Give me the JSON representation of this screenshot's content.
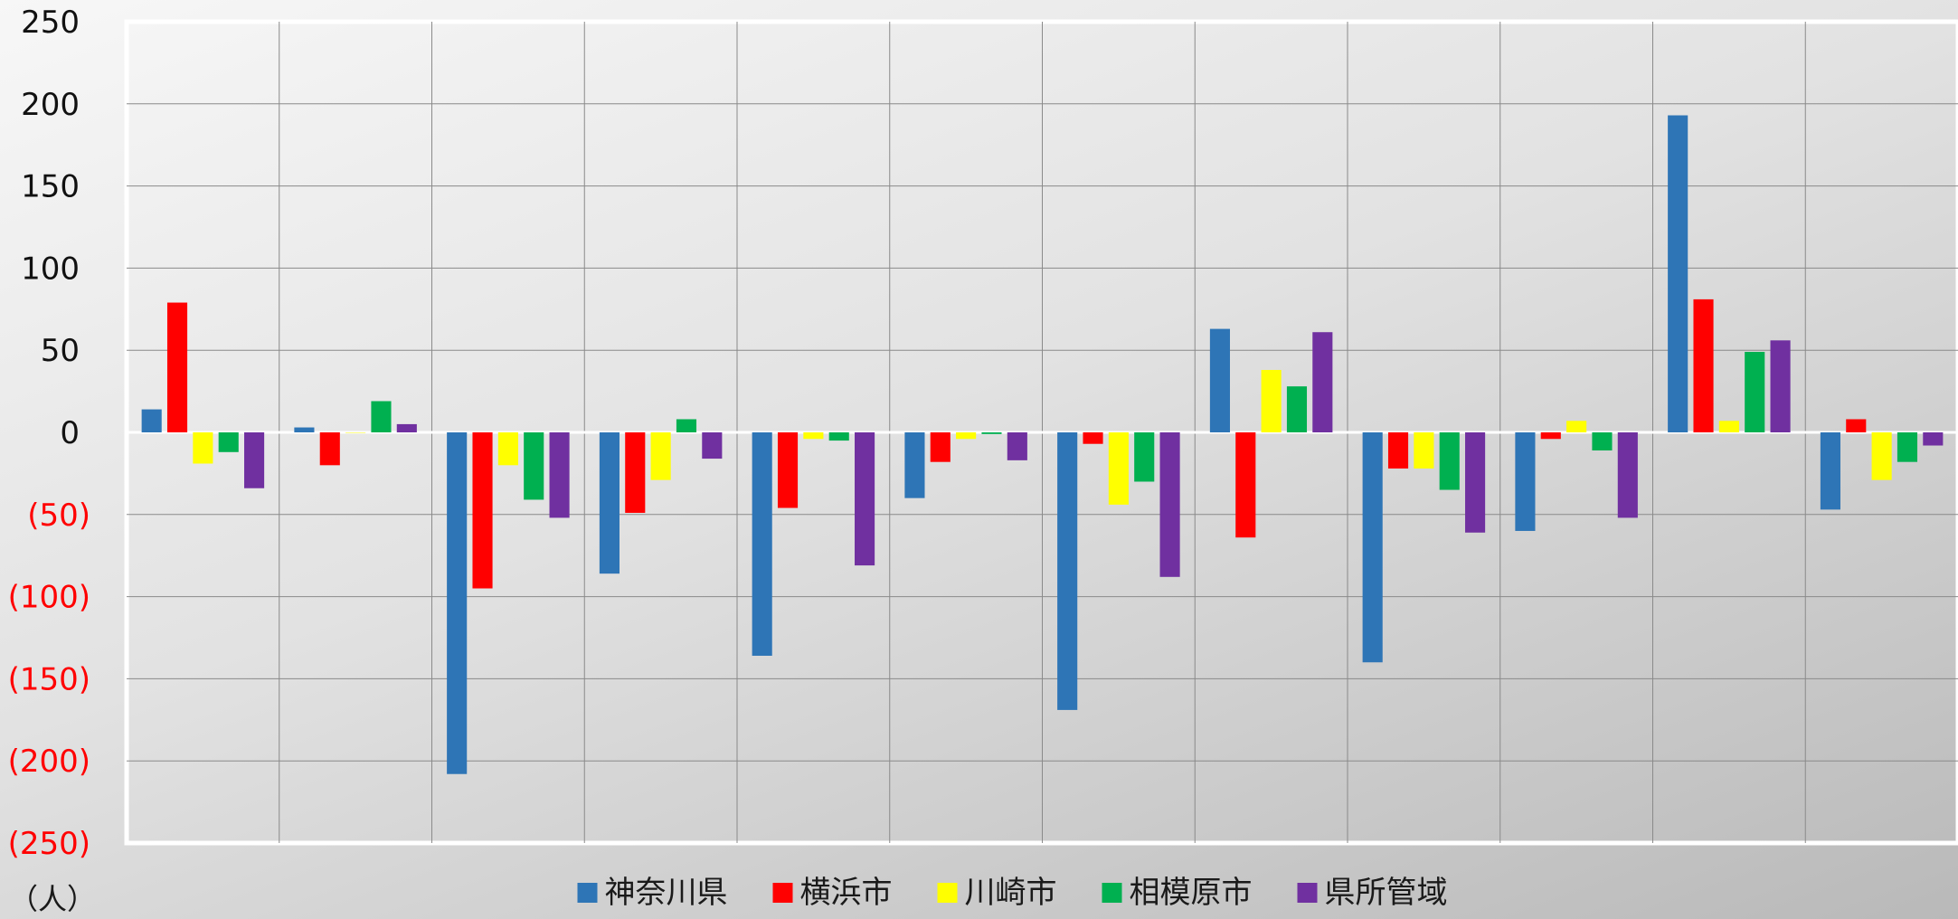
{
  "chart_data": {
    "type": "bar",
    "categories": [
      "",
      "",
      "",
      "",
      "",
      "",
      "",
      "",
      "",
      "",
      "",
      ""
    ],
    "series": [
      {
        "name": "神奈川県",
        "color": "#2e75b6",
        "values": [
          14,
          3,
          -208,
          -86,
          -136,
          -40,
          -169,
          63,
          -140,
          -60,
          193,
          -47
        ]
      },
      {
        "name": "横浜市",
        "color": "#ff0000",
        "values": [
          79,
          -20,
          -95,
          -49,
          -46,
          -18,
          -7,
          -64,
          -22,
          -4,
          81,
          8
        ]
      },
      {
        "name": "川崎市",
        "color": "#ffff00",
        "values": [
          -19,
          0,
          -20,
          -29,
          -4,
          -4,
          -44,
          38,
          -22,
          7,
          7,
          -29
        ]
      },
      {
        "name": "相模原市",
        "color": "#00b050",
        "values": [
          -12,
          19,
          -41,
          8,
          -5,
          -1,
          -30,
          28,
          -35,
          -11,
          49,
          -18
        ]
      },
      {
        "name": "県所管域",
        "color": "#7030a0",
        "values": [
          -34,
          5,
          -52,
          -16,
          -81,
          -17,
          -88,
          61,
          -61,
          -52,
          56,
          -8
        ]
      }
    ],
    "yticks": [
      "250",
      "200",
      "150",
      "100",
      "50",
      "0",
      "(50)",
      "(100)",
      "(150)",
      "(200)",
      "(250)"
    ],
    "negative_tick_color": "#ff0000",
    "ylim": [
      -250,
      250
    ],
    "ylabel": "（人）",
    "grid": true,
    "legend_position": "bottom"
  }
}
